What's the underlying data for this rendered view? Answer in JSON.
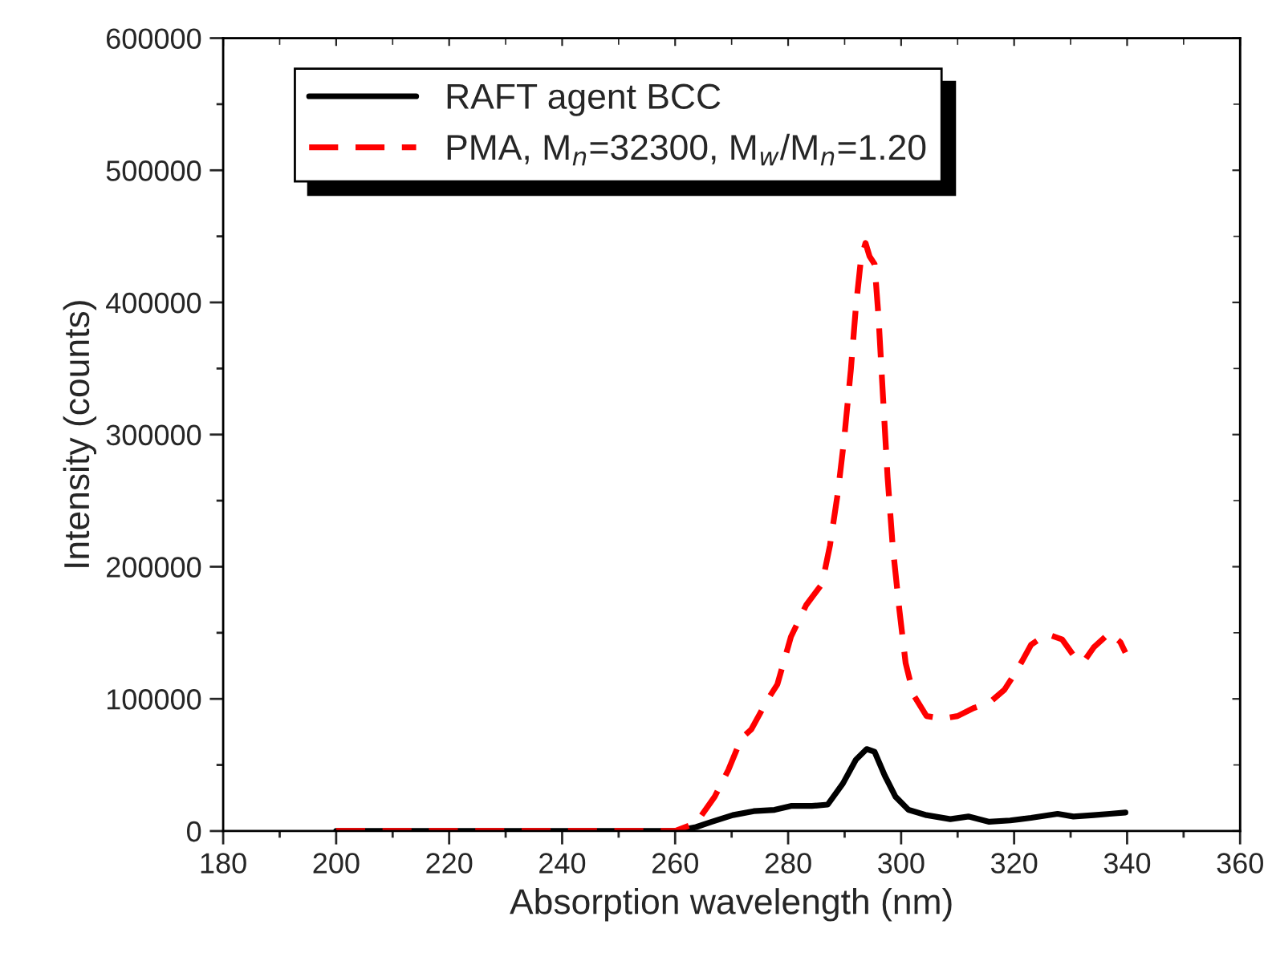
{
  "chart_data": {
    "type": "line",
    "xlabel": "Absorption wavelength (nm)",
    "ylabel": "Intensity (counts)",
    "xlim": [
      180,
      360
    ],
    "ylim": [
      0,
      600000
    ],
    "xticks": [
      180,
      200,
      220,
      240,
      260,
      280,
      300,
      320,
      340,
      360
    ],
    "yticks": [
      0,
      100000,
      200000,
      300000,
      400000,
      500000,
      600000
    ],
    "grid": false,
    "legend": "top left",
    "series": [
      {
        "name": "RAFT agent BCC",
        "color": "#000000",
        "line_style": "solid",
        "x": [
          200,
          220,
          240,
          255,
          260,
          263.7,
          266.5,
          270.2,
          273.9,
          277.6,
          280.5,
          284.2,
          287,
          289.7,
          292,
          293.9,
          295.3,
          297.1,
          299,
          301.3,
          304.5,
          308.7,
          311.9,
          315.6,
          319.3,
          323,
          327.7,
          330.5,
          334.1,
          336.9,
          339.7
        ],
        "values": [
          0,
          0,
          0,
          0,
          0,
          3000,
          7000,
          12000,
          15000,
          16000,
          19000,
          19000,
          20000,
          36000,
          54000,
          62000,
          60000,
          42000,
          26000,
          16000,
          12000,
          9000,
          11000,
          7000,
          8000,
          10000,
          13000,
          11000,
          12000,
          13000,
          14000
        ]
      },
      {
        "name": "PMA, M$_{n}$=32300, M$_{w}$/M$_{n}$=1.20",
        "color": "#ff0000",
        "line_style": "dashed",
        "x": [
          200,
          220,
          240,
          255,
          260,
          263.7,
          267,
          269.4,
          271.7,
          273.5,
          276.3,
          278.1,
          280.5,
          283.2,
          286,
          287.4,
          288.8,
          289.9,
          291.1,
          292,
          292.9,
          293.7,
          294.4,
          295.3,
          296,
          296.8,
          297.6,
          298.5,
          299.7,
          300.8,
          302.2,
          304.5,
          307.3,
          310,
          312.8,
          315.6,
          318.3,
          320.7,
          323,
          325.8,
          328.5,
          330.5,
          332.3,
          334.1,
          336.9,
          338.8,
          339.7
        ],
        "values": [
          0,
          0,
          0,
          0,
          0,
          6000,
          26000,
          46000,
          70000,
          77000,
          99000,
          111000,
          147000,
          171000,
          187000,
          216000,
          256000,
          296000,
          349000,
          397000,
          433000,
          445000,
          435000,
          429000,
          389000,
          328000,
          268000,
          216000,
          167000,
          127000,
          103000,
          87000,
          85000,
          87000,
          93000,
          97000,
          107000,
          123000,
          141000,
          149000,
          145000,
          133000,
          128000,
          139000,
          150000,
          143000,
          135000
        ]
      }
    ]
  }
}
